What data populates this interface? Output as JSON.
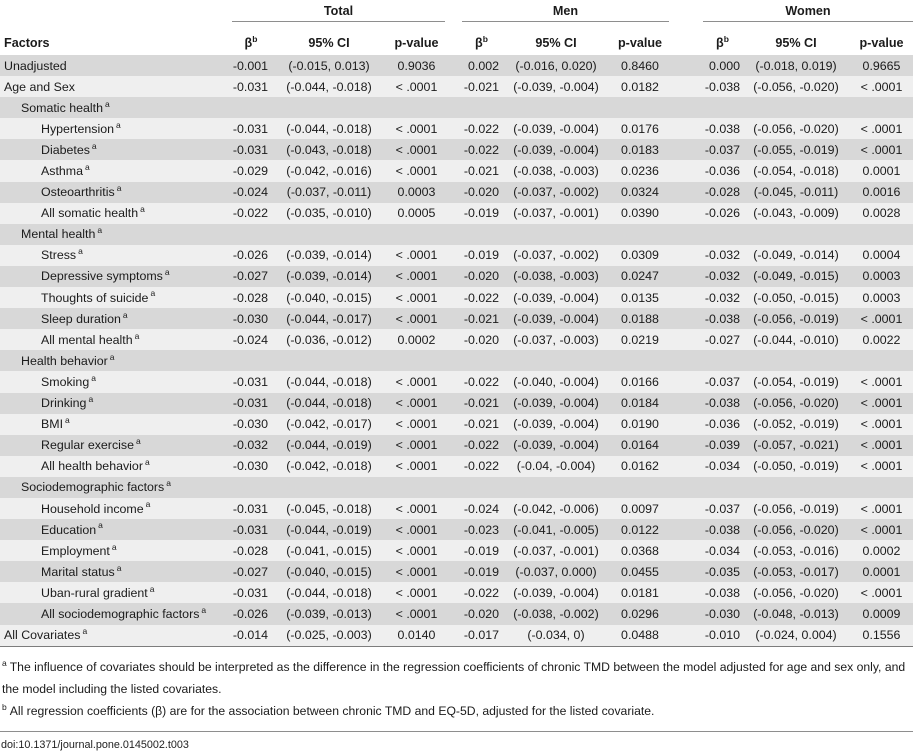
{
  "page": {
    "doi": "doi:10.1371/journal.pone.0145002.t003"
  },
  "table": {
    "factors_header": "Factors",
    "groups": [
      {
        "label": "Total"
      },
      {
        "label": "Men"
      },
      {
        "label": "Women"
      }
    ],
    "subheader": {
      "beta": "β",
      "beta_sup": "b",
      "ci": "95% CI",
      "p": "p-value"
    },
    "rows": [
      {
        "label": "Unadjusted",
        "sup": "",
        "indent": 0,
        "cells": [
          "-0.001",
          "(-0.015, 0.013)",
          "0.9036",
          "0.002",
          "(-0.016, 0.020)",
          "0.8460",
          "0.000",
          "(-0.018, 0.019)",
          "0.9665"
        ]
      },
      {
        "label": "Age and Sex",
        "sup": "",
        "indent": 0,
        "cells": [
          "-0.031",
          "(-0.044, -0.018)",
          "< .0001",
          "-0.021",
          "(-0.039, -0.004)",
          "0.0182",
          "-0.038",
          "(-0.056, -0.020)",
          "< .0001"
        ]
      },
      {
        "label": "Somatic health",
        "sup": "a",
        "indent": 1,
        "cells": []
      },
      {
        "label": "Hypertension",
        "sup": "a",
        "indent": 2,
        "cells": [
          "-0.031",
          "(-0.044, -0.018)",
          "< .0001",
          "-0.022",
          "(-0.039, -0.004)",
          "0.0176",
          "-0.038",
          "(-0.056, -0.020)",
          "< .0001"
        ]
      },
      {
        "label": "Diabetes",
        "sup": "a",
        "indent": 2,
        "cells": [
          "-0.031",
          "(-0.043, -0.018)",
          "< .0001",
          "-0.022",
          "(-0.039, -0.004)",
          "0.0183",
          "-0.037",
          "(-0.055, -0.019)",
          "< .0001"
        ]
      },
      {
        "label": "Asthma",
        "sup": "a",
        "indent": 2,
        "cells": [
          "-0.029",
          "(-0.042, -0.016)",
          "< .0001",
          "-0.021",
          "(-0.038, -0.003)",
          "0.0236",
          "-0.036",
          "(-0.054, -0.018)",
          "0.0001"
        ]
      },
      {
        "label": "Osteoarthritis",
        "sup": "a",
        "indent": 2,
        "cells": [
          "-0.024",
          "(-0.037, -0.011)",
          "0.0003",
          "-0.020",
          "(-0.037, -0.002)",
          "0.0324",
          "-0.028",
          "(-0.045, -0.011)",
          "0.0016"
        ]
      },
      {
        "label": "All somatic health",
        "sup": "a",
        "indent": 2,
        "cells": [
          "-0.022",
          "(-0.035, -0.010)",
          "0.0005",
          "-0.019",
          "(-0.037, -0.001)",
          "0.0390",
          "-0.026",
          "(-0.043, -0.009)",
          "0.0028"
        ]
      },
      {
        "label": "Mental health",
        "sup": "a",
        "indent": 1,
        "cells": []
      },
      {
        "label": "Stress",
        "sup": "a",
        "indent": 2,
        "cells": [
          "-0.026",
          "(-0.039, -0.014)",
          "< .0001",
          "-0.019",
          "(-0.037, -0.002)",
          "0.0309",
          "-0.032",
          "(-0.049, -0.014)",
          "0.0004"
        ]
      },
      {
        "label": "Depressive symptoms",
        "sup": "a",
        "indent": 2,
        "cells": [
          "-0.027",
          "(-0.039, -0.014)",
          "< .0001",
          "-0.020",
          "(-0.038, -0.003)",
          "0.0247",
          "-0.032",
          "(-0.049, -0.015)",
          "0.0003"
        ]
      },
      {
        "label": "Thoughts of suicide",
        "sup": "a",
        "indent": 2,
        "cells": [
          "-0.028",
          "(-0.040, -0.015)",
          "< .0001",
          "-0.022",
          "(-0.039, -0.004)",
          "0.0135",
          "-0.032",
          "(-0.050, -0.015)",
          "0.0003"
        ]
      },
      {
        "label": "Sleep duration",
        "sup": "a",
        "indent": 2,
        "cells": [
          "-0.030",
          "(-0.044, -0.017)",
          "< .0001",
          "-0.021",
          "(-0.039, -0.004)",
          "0.0188",
          "-0.038",
          "(-0.056, -0.019)",
          "< .0001"
        ]
      },
      {
        "label": "All mental health",
        "sup": "a",
        "indent": 2,
        "cells": [
          "-0.024",
          "(-0.036, -0.012)",
          "0.0002",
          "-0.020",
          "(-0.037, -0.003)",
          "0.0219",
          "-0.027",
          "(-0.044, -0.010)",
          "0.0022"
        ]
      },
      {
        "label": "Health behavior",
        "sup": "a",
        "indent": 1,
        "cells": []
      },
      {
        "label": "Smoking",
        "sup": "a",
        "indent": 2,
        "cells": [
          "-0.031",
          "(-0.044, -0.018)",
          "< .0001",
          "-0.022",
          "(-0.040, -0.004)",
          "0.0166",
          "-0.037",
          "(-0.054, -0.019)",
          "< .0001"
        ]
      },
      {
        "label": "Drinking",
        "sup": "a",
        "indent": 2,
        "cells": [
          "-0.031",
          "(-0.044, -0.018)",
          "< .0001",
          "-0.021",
          "(-0.039, -0.004)",
          "0.0184",
          "-0.038",
          "(-0.056, -0.020)",
          "< .0001"
        ]
      },
      {
        "label": "BMI",
        "sup": "a",
        "indent": 2,
        "cells": [
          "-0.030",
          "(-0.042, -0.017)",
          "< .0001",
          "-0.021",
          "(-0.039, -0.004)",
          "0.0190",
          "-0.036",
          "(-0.052, -0.019)",
          "< .0001"
        ]
      },
      {
        "label": "Regular exercise",
        "sup": "a",
        "indent": 2,
        "cells": [
          "-0.032",
          "(-0.044, -0.019)",
          "< .0001",
          "-0.022",
          "(-0.039, -0.004)",
          "0.0164",
          "-0.039",
          "(-0.057, -0.021)",
          "< .0001"
        ]
      },
      {
        "label": "All health behavior",
        "sup": "a",
        "indent": 2,
        "cells": [
          "-0.030",
          "(-0.042, -0.018)",
          "< .0001",
          "-0.022",
          "(-0.04, -0.004)",
          "0.0162",
          "-0.034",
          "(-0.050, -0.019)",
          "< .0001"
        ]
      },
      {
        "label": "Sociodemographic factors",
        "sup": "a",
        "indent": 1,
        "cells": []
      },
      {
        "label": "Household income",
        "sup": "a",
        "indent": 2,
        "cells": [
          "-0.031",
          "(-0.045, -0.018)",
          "< .0001",
          "-0.024",
          "(-0.042, -0.006)",
          "0.0097",
          "-0.037",
          "(-0.056, -0.019)",
          "< .0001"
        ]
      },
      {
        "label": "Education",
        "sup": "a",
        "indent": 2,
        "cells": [
          "-0.031",
          "(-0.044, -0.019)",
          "< .0001",
          "-0.023",
          "(-0.041, -0.005)",
          "0.0122",
          "-0.038",
          "(-0.056, -0.020)",
          "< .0001"
        ]
      },
      {
        "label": "Employment",
        "sup": "a",
        "indent": 2,
        "cells": [
          "-0.028",
          "(-0.041, -0.015)",
          "< .0001",
          "-0.019",
          "(-0.037, -0.001)",
          "0.0368",
          "-0.034",
          "(-0.053, -0.016)",
          "0.0002"
        ]
      },
      {
        "label": "Marital status",
        "sup": "a",
        "indent": 2,
        "cells": [
          "-0.027",
          "(-0.040, -0.015)",
          "< .0001",
          "-0.019",
          "(-0.037, 0.000)",
          "0.0455",
          "-0.035",
          "(-0.053, -0.017)",
          "0.0001"
        ]
      },
      {
        "label": "Uban-rural gradient",
        "sup": "a",
        "indent": 2,
        "cells": [
          "-0.031",
          "(-0.044, -0.018)",
          "< .0001",
          "-0.022",
          "(-0.039, -0.004)",
          "0.0181",
          "-0.038",
          "(-0.056, -0.020)",
          "< .0001"
        ]
      },
      {
        "label": "All sociodemographic factors",
        "sup": "a",
        "indent": 2,
        "cells": [
          "-0.026",
          "(-0.039, -0.013)",
          "< .0001",
          "-0.020",
          "(-0.038, -0.002)",
          "0.0296",
          "-0.030",
          "(-0.048, -0.013)",
          "0.0009"
        ]
      },
      {
        "label": "All Covariates",
        "sup": "a",
        "indent": 0,
        "cells": [
          "-0.014",
          "(-0.025, -0.003)",
          "0.0140",
          "-0.017",
          "(-0.034, 0)",
          "0.0488",
          "-0.010",
          "(-0.024, 0.004)",
          "0.1556"
        ]
      }
    ],
    "footnotes": [
      {
        "sup": "a",
        "text": "The influence of covariates should be interpreted as the difference in the regression coefficients of chronic TMD between the model adjusted for age and sex only, and the model including the listed covariates."
      },
      {
        "sup": "b",
        "text": "All regression coefficients (β) are for the association between chronic TMD and EQ-5D, adjusted for the listed covariate."
      }
    ],
    "colors": {
      "stripe_dark": "#d8d8d8",
      "stripe_light": "#efefef",
      "rule": "#8e8e8e"
    }
  }
}
